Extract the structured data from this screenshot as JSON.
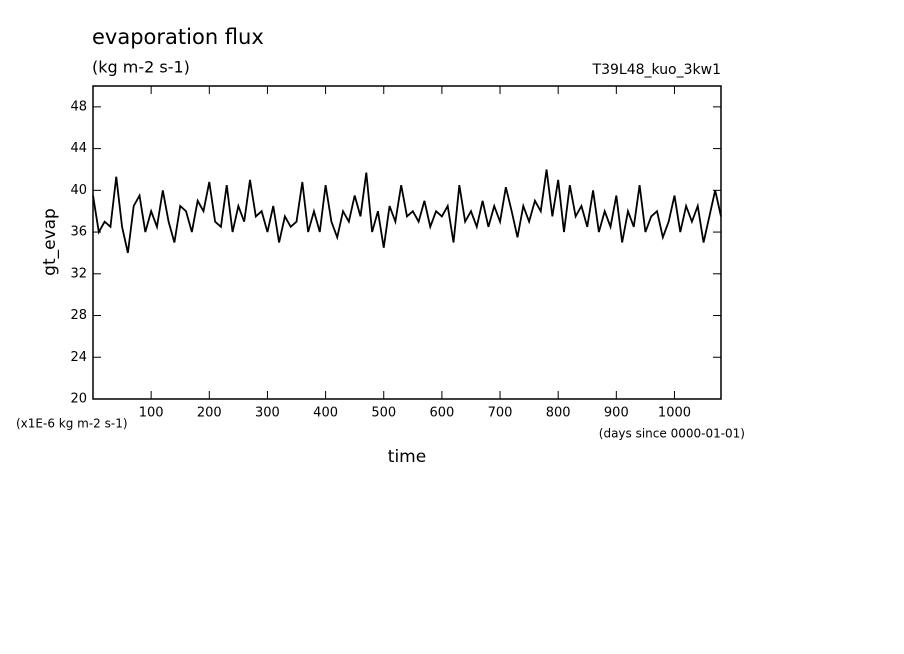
{
  "chart_data": {
    "type": "line",
    "title": "evaporation flux",
    "subtitle": "(kg m-2 s-1)",
    "annotation": "T39L48_kuo_3kw1",
    "y_label": "gt_evap",
    "y_unit_label": "(x1E-6 kg m-2 s-1)",
    "x_unit_label": "(days since 0000-01-01)",
    "x_label": "time",
    "xlim": [
      0,
      1080
    ],
    "ylim": [
      20,
      50
    ],
    "xticks": [
      100,
      200,
      300,
      400,
      500,
      600,
      700,
      800,
      900,
      1000
    ],
    "yticks": [
      20,
      24,
      28,
      32,
      36,
      40,
      44,
      48
    ],
    "grid": false,
    "x": [
      0,
      10,
      20,
      30,
      40,
      50,
      60,
      70,
      80,
      90,
      100,
      110,
      120,
      130,
      140,
      150,
      160,
      170,
      180,
      190,
      200,
      210,
      220,
      230,
      240,
      250,
      260,
      270,
      280,
      290,
      300,
      310,
      320,
      330,
      340,
      350,
      360,
      370,
      380,
      390,
      400,
      410,
      420,
      430,
      440,
      450,
      460,
      470,
      480,
      490,
      500,
      510,
      520,
      530,
      540,
      550,
      560,
      570,
      580,
      590,
      600,
      610,
      620,
      630,
      640,
      650,
      660,
      670,
      680,
      690,
      700,
      710,
      720,
      730,
      740,
      750,
      760,
      770,
      780,
      790,
      800,
      810,
      820,
      830,
      840,
      850,
      860,
      870,
      880,
      890,
      900,
      910,
      920,
      930,
      940,
      950,
      960,
      970,
      980,
      990,
      1000,
      1010,
      1020,
      1030,
      1040,
      1050,
      1060,
      1070,
      1080
    ],
    "series": [
      {
        "name": "gt_evap",
        "color": "#000000",
        "values": [
          39.5,
          36,
          37,
          36.5,
          41.3,
          36.5,
          34,
          38.5,
          39.5,
          36,
          38,
          36.5,
          40,
          37,
          35,
          38.5,
          38,
          36,
          39,
          38,
          40.8,
          37,
          36.5,
          40.5,
          36,
          38.5,
          37,
          41,
          37.5,
          38,
          36,
          38.5,
          35,
          37.5,
          36.5,
          37,
          40.8,
          36,
          38,
          36,
          40.5,
          37,
          35.5,
          38,
          37,
          39.5,
          37.5,
          41.7,
          36,
          38,
          34.5,
          38.5,
          37,
          40.5,
          37.5,
          38,
          37,
          39,
          36.5,
          38,
          37.5,
          38.5,
          35,
          40.5,
          37,
          38,
          36.5,
          39,
          36.5,
          38.5,
          37,
          40.3,
          38,
          35.5,
          38.5,
          37,
          39,
          38,
          42,
          37.5,
          41,
          36,
          40.5,
          37.5,
          38.5,
          36.5,
          40,
          36,
          38,
          36.5,
          39.5,
          35,
          38,
          36.5,
          40.5,
          36,
          37.5,
          38,
          35.5,
          37,
          39.5,
          36,
          38.5,
          37,
          38.5,
          35,
          37.5,
          40,
          37.5
        ]
      }
    ]
  }
}
